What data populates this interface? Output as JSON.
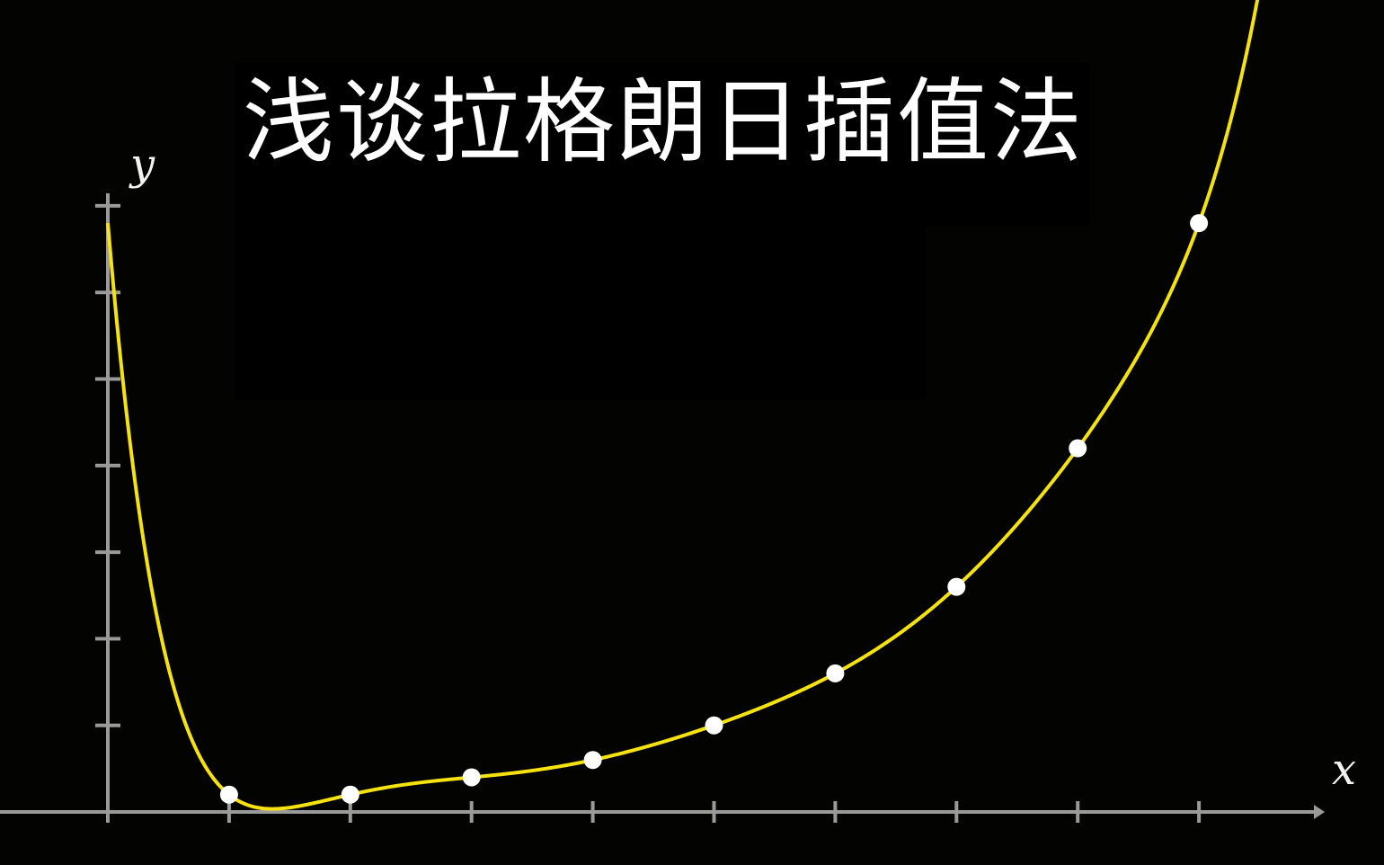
{
  "title": "浅谈拉格朗日插值法",
  "chart_data": {
    "type": "line",
    "xlabel": "x",
    "ylabel": "y",
    "title": "",
    "x_ticks": [
      1,
      2,
      3,
      4,
      5,
      6,
      7,
      8,
      9
    ],
    "y_ticks": [
      1,
      2,
      3,
      4,
      5,
      6,
      7
    ],
    "xlim": [
      0,
      10
    ],
    "ylim": [
      0,
      9.5
    ],
    "grid": false,
    "series": [
      {
        "points_x": [
          1,
          2,
          3,
          4,
          5,
          6,
          7,
          8,
          9
        ],
        "points_y": [
          0.2,
          0.2,
          0.4,
          0.6,
          1.0,
          1.6,
          2.6,
          4.2,
          6.8
        ]
      }
    ],
    "colors": {
      "curve": "#f5e20f",
      "points": "#ffffff",
      "axes": "#9a9a9a"
    }
  }
}
